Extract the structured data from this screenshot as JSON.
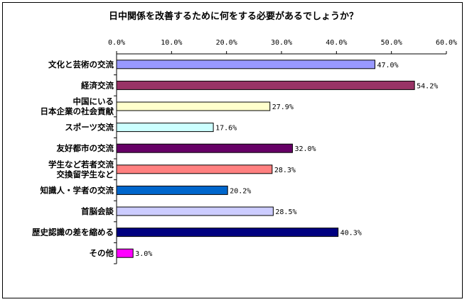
{
  "chart_data": {
    "type": "bar",
    "orientation": "horizontal",
    "title": "日中関係を改善するために何をする必要があるでしょうか？",
    "xlim": [
      0,
      60
    ],
    "tick_values": [
      0,
      10,
      20,
      30,
      40,
      50,
      60
    ],
    "tick_labels": [
      "0.0%",
      "10.0%",
      "20.0%",
      "30.0%",
      "40.0%",
      "50.0%",
      "60.0%"
    ],
    "xaxis_position": "top",
    "grid": false,
    "legend": "none",
    "categories": [
      [
        "文化と芸術の交流"
      ],
      [
        "経済交流"
      ],
      [
        "中国にいる",
        "日本企業の社会貢献"
      ],
      [
        "スポーツ交流"
      ],
      [
        "友好都市の交流"
      ],
      [
        "学生など若者交流",
        "交換留学生など"
      ],
      [
        "知識人・学者の交流"
      ],
      [
        "首脳会談"
      ],
      [
        "歴史認識の差を縮める"
      ],
      [
        "その他"
      ]
    ],
    "values": [
      47.0,
      54.2,
      27.9,
      17.6,
      32.0,
      28.3,
      20.2,
      28.5,
      40.3,
      3.0
    ],
    "value_labels": [
      "47.0%",
      "54.2%",
      "27.9%",
      "17.6%",
      "32.0%",
      "28.3%",
      "20.2%",
      "28.5%",
      "40.3%",
      "3.0%"
    ],
    "colors": [
      "#9999ff",
      "#993366",
      "#ffffcc",
      "#ccffff",
      "#660066",
      "#ff8080",
      "#0066cc",
      "#ccccff",
      "#000080",
      "#ff00ff"
    ]
  }
}
